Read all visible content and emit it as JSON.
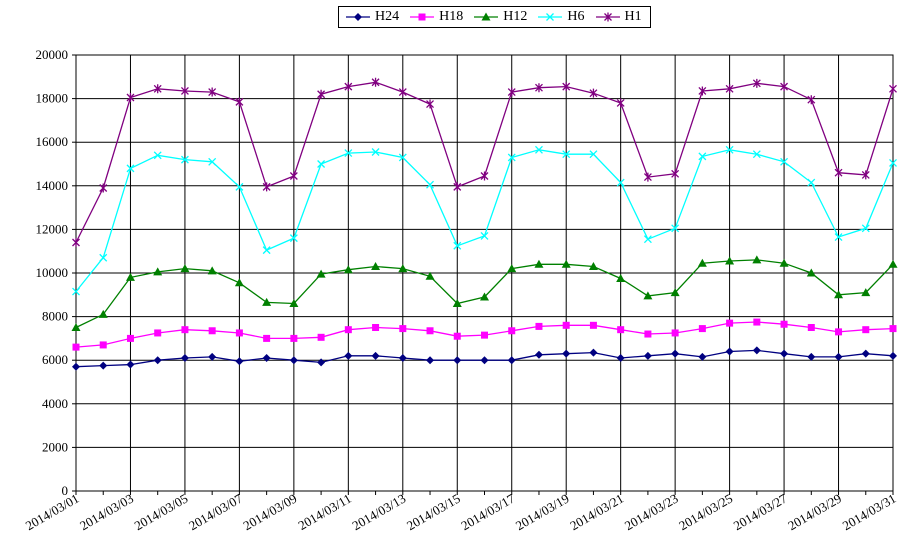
{
  "chart_data": {
    "type": "line",
    "title": "",
    "xlabel": "",
    "ylabel": "",
    "ylim": [
      0,
      20000
    ],
    "yticks": [
      0,
      2000,
      4000,
      6000,
      8000,
      10000,
      12000,
      14000,
      16000,
      18000,
      20000
    ],
    "grid": "on",
    "legend_position": "top",
    "x": [
      "2014/03/01",
      "2014/03/02",
      "2014/03/03",
      "2014/03/04",
      "2014/03/05",
      "2014/03/06",
      "2014/03/07",
      "2014/03/08",
      "2014/03/09",
      "2014/03/10",
      "2014/03/11",
      "2014/03/12",
      "2014/03/13",
      "2014/03/14",
      "2014/03/15",
      "2014/03/16",
      "2014/03/17",
      "2014/03/18",
      "2014/03/19",
      "2014/03/20",
      "2014/03/21",
      "2014/03/22",
      "2014/03/23",
      "2014/03/24",
      "2014/03/25",
      "2014/03/26",
      "2014/03/27",
      "2014/03/28",
      "2014/03/29",
      "2014/03/30",
      "2014/03/31"
    ],
    "x_tick_labels": [
      "2014/03/01",
      "2014/03/03",
      "2014/03/05",
      "2014/03/07",
      "2014/03/09",
      "2014/03/11",
      "2014/03/13",
      "2014/03/15",
      "2014/03/17",
      "2014/03/19",
      "2014/03/21",
      "2014/03/23",
      "2014/03/25",
      "2014/03/27",
      "2014/03/29",
      "2014/03/31"
    ],
    "series": [
      {
        "name": "H24",
        "color": "#000080",
        "marker": "diamond",
        "values": [
          5700,
          5750,
          5800,
          6000,
          6100,
          6150,
          5950,
          6100,
          6000,
          5900,
          6200,
          6200,
          6100,
          6000,
          6000,
          6000,
          6000,
          6250,
          6300,
          6350,
          6100,
          6200,
          6300,
          6150,
          6400,
          6450,
          6300,
          6150,
          6150,
          6300,
          6200
        ]
      },
      {
        "name": "H18",
        "color": "#ff00ff",
        "marker": "square",
        "values": [
          6600,
          6700,
          7000,
          7250,
          7400,
          7350,
          7250,
          7000,
          7000,
          7050,
          7400,
          7500,
          7450,
          7350,
          7100,
          7150,
          7350,
          7550,
          7600,
          7600,
          7400,
          7200,
          7250,
          7450,
          7700,
          7750,
          7650,
          7500,
          7300,
          7400,
          7450
        ]
      },
      {
        "name": "H12",
        "color": "#008000",
        "marker": "triangle",
        "values": [
          7500,
          8100,
          9800,
          10050,
          10200,
          10100,
          9550,
          8650,
          8600,
          9950,
          10150,
          10300,
          10200,
          9850,
          8600,
          8900,
          10200,
          10400,
          10400,
          10300,
          9750,
          8950,
          9100,
          10450,
          10550,
          10600,
          10450,
          10000,
          9000,
          9100,
          10400
        ]
      },
      {
        "name": "H6",
        "color": "#00ffff",
        "marker": "x",
        "values": [
          9150,
          10700,
          14800,
          15400,
          15200,
          15100,
          13950,
          11050,
          11600,
          15000,
          15500,
          15550,
          15300,
          14050,
          11250,
          11700,
          15300,
          15650,
          15450,
          15450,
          14150,
          11550,
          12050,
          15350,
          15650,
          15450,
          15100,
          14150,
          11650,
          12050,
          15050
        ]
      },
      {
        "name": "H1",
        "color": "#800080",
        "marker": "star",
        "values": [
          11400,
          13900,
          18050,
          18450,
          18350,
          18300,
          17850,
          13950,
          14450,
          18200,
          18550,
          18750,
          18300,
          17750,
          13950,
          14450,
          18300,
          18500,
          18550,
          18250,
          17800,
          14400,
          14550,
          18350,
          18450,
          18700,
          18550,
          17950,
          14600,
          14500,
          18450
        ]
      }
    ]
  }
}
